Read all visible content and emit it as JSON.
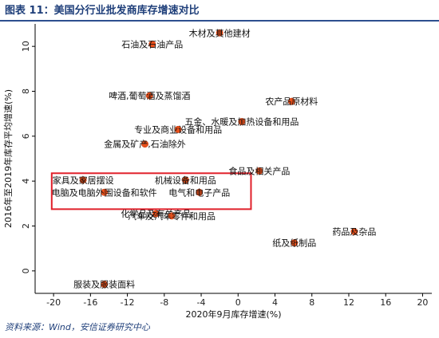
{
  "figure": {
    "title": "图表 11：美国分行业批发商库存增速对比",
    "source": "资料来源：Wind，安信证券研究中心"
  },
  "chart_data": {
    "type": "scatter",
    "xlabel": "2020年9月库存增速(%)",
    "ylabel": "2016年至2019年库存平均增速(%)",
    "xlim": [
      -22,
      21
    ],
    "ylim": [
      -1,
      11
    ],
    "xticks": [
      -20,
      -16,
      -12,
      -8,
      -4,
      0,
      4,
      8,
      12,
      16,
      20
    ],
    "yticks": [
      0,
      2,
      4,
      6,
      8,
      10
    ],
    "grid": false,
    "marker_color": "#e8501b",
    "highlight_color": "#e0202a",
    "highlight_box": {
      "x": [
        -20.2,
        1.4
      ],
      "y": [
        2.75,
        4.35
      ]
    },
    "points": [
      {
        "label": "木材及其他建材",
        "x": -2.0,
        "y": 10.6
      },
      {
        "label": "石油及石油产品",
        "x": -9.3,
        "y": 10.1
      },
      {
        "label": "啤酒,葡萄酒及蒸馏酒",
        "x": -9.6,
        "y": 7.8
      },
      {
        "label": "农产品原材料",
        "x": 5.8,
        "y": 7.55
      },
      {
        "label": "五金、水暖及加热设备和用品",
        "x": 0.4,
        "y": 6.65
      },
      {
        "label": "专业及商业设备和用品",
        "x": -6.5,
        "y": 6.3
      },
      {
        "label": "金属及矿产,石油除外",
        "x": -10.1,
        "y": 5.65
      },
      {
        "label": "食品及相关产品",
        "x": 2.3,
        "y": 4.45
      },
      {
        "label": "家具及家居摆设",
        "x": -16.8,
        "y": 4.05
      },
      {
        "label": "机械设备和用品",
        "x": -5.7,
        "y": 4.05
      },
      {
        "label": "电脑及电脑外围设备和软件",
        "x": -14.5,
        "y": 3.5
      },
      {
        "label": "电气和电子产品",
        "x": -4.2,
        "y": 3.5
      },
      {
        "label": "化学品及有关产品",
        "x": -8.9,
        "y": 2.55
      },
      {
        "label": "汽车及汽车零件和用品",
        "x": -7.2,
        "y": 2.45
      },
      {
        "label": "药品及杂品",
        "x": 12.6,
        "y": 1.75
      },
      {
        "label": "纸及纸制品",
        "x": 6.1,
        "y": 1.25
      },
      {
        "label": "服装及服装面料",
        "x": -14.5,
        "y": -0.6
      }
    ]
  }
}
